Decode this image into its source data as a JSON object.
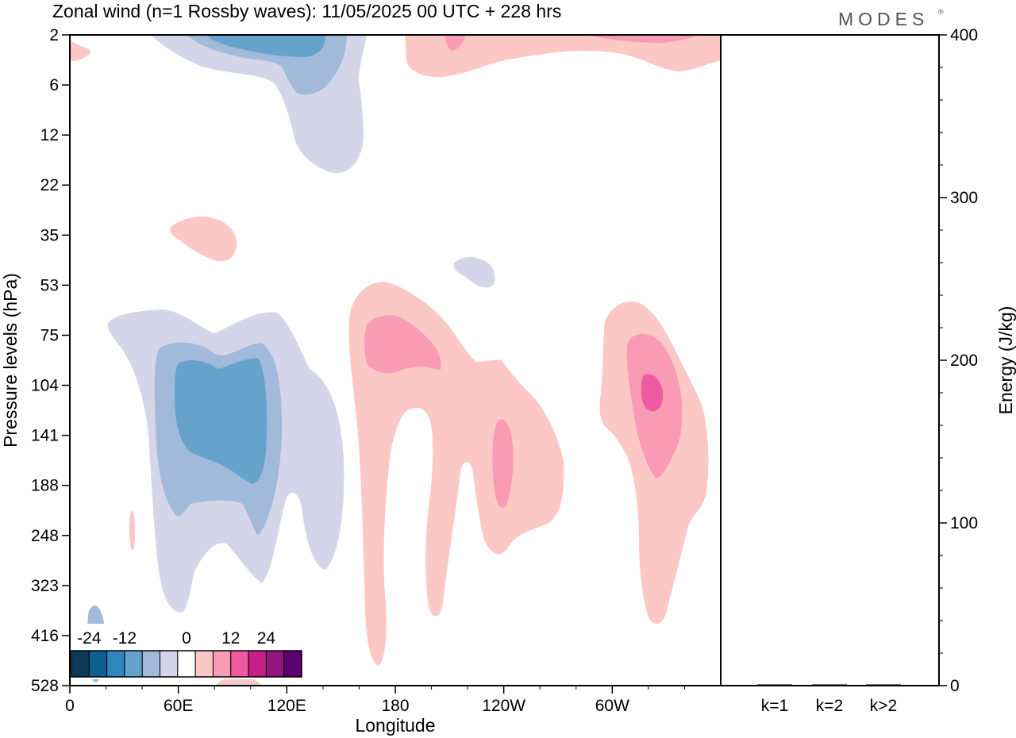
{
  "header": {
    "title": "Zonal wind (n=1 Rossby waves):  11/05/2025  00 UTC  + 228 hrs",
    "logo": "MODES",
    "logo_mark": "®"
  },
  "chart_data": [
    {
      "type": "heatmap",
      "title": "Zonal wind (n=1 Rossby waves):  11/05/2025  00 UTC  + 228 hrs",
      "xlabel": "Longitude",
      "ylabel": "Pressure levels (hPa)",
      "x_ticks": [
        "0",
        "60E",
        "120E",
        "180",
        "120W",
        "60W"
      ],
      "x_tick_degrees": [
        0,
        60,
        120,
        180,
        240,
        300
      ],
      "xlim": [
        0,
        360
      ],
      "y_ticks": [
        "2",
        "6",
        "12",
        "22",
        "35",
        "53",
        "75",
        "104",
        "141",
        "188",
        "248",
        "323",
        "416",
        "528"
      ],
      "y_scale": "log-pressure (inverted, top = 2 hPa)",
      "grid": false,
      "colorbar": {
        "placement": "bottom-left, inside plot",
        "tick_labels": [
          "-24",
          "-12",
          "0",
          "12",
          "24"
        ],
        "colors": [
          "#0d3a56",
          "#0b5f93",
          "#2d86bd",
          "#66a3cc",
          "#a2bad9",
          "#d4d5e9",
          "#ffffff",
          "#fbc8c6",
          "#f99bb5",
          "#ef5ba0",
          "#c81f87",
          "#91157f",
          "#5a0071"
        ]
      },
      "features": [
        {
          "label": "easterly core, upper stratosphere",
          "lon_range": [
            20,
            150
          ],
          "p_range": [
            2,
            20
          ],
          "min_level": -12
        },
        {
          "label": "westerly band, upper stratosphere",
          "lon_range": [
            185,
            360
          ],
          "p_range": [
            2,
            7
          ],
          "max_level": 12
        },
        {
          "label": "small westerly patch",
          "lon_range": [
            55,
            95
          ],
          "p_range": [
            33,
            48
          ],
          "max_level": 6
        },
        {
          "label": "small easterly patch",
          "lon_range": [
            212,
            235
          ],
          "p_range": [
            48,
            60
          ],
          "min_level": -6
        },
        {
          "label": "easterly anomaly, tropopause region",
          "lon_range": [
            20,
            150
          ],
          "p_range": [
            75,
            400
          ],
          "min_level": -18
        },
        {
          "label": "westerly anomaly near dateline",
          "lon_range": [
            150,
            270
          ],
          "p_range": [
            50,
            500
          ],
          "max_level": 12
        },
        {
          "label": "westerly anomaly, western hemisphere",
          "lon_range": [
            290,
            350
          ],
          "p_range": [
            55,
            420
          ],
          "max_level": 18
        }
      ]
    },
    {
      "type": "bar",
      "ylabel": "Energy (J/kg)",
      "categories": [
        "k=1",
        "k=2",
        "k>2"
      ],
      "values": [
        0.5,
        0.2,
        0.3
      ],
      "ylim": [
        0,
        400
      ],
      "y_ticks": [
        "0",
        "100",
        "200",
        "300",
        "400"
      ],
      "grid": false
    }
  ]
}
